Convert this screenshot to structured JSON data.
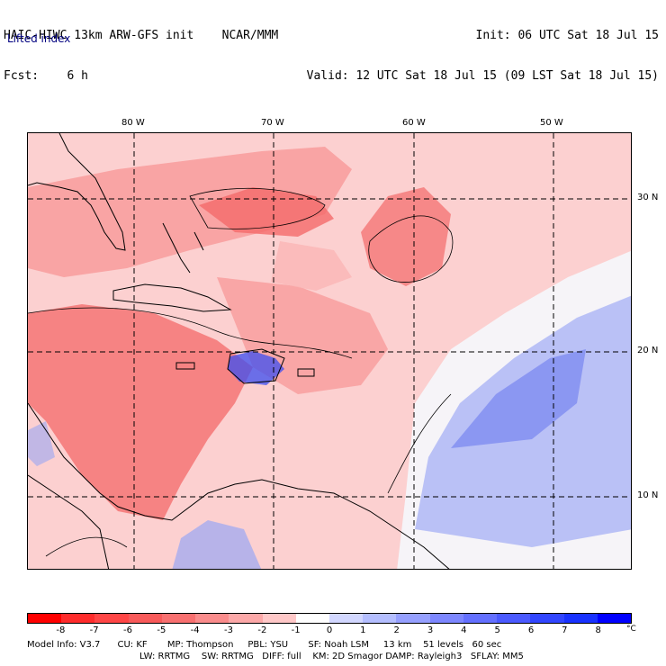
{
  "header": {
    "line1_left": "HAIC-HIWC 13km ARW-GFS init    NCAR/MMM",
    "line2_left": "Fcst:    6 h",
    "line1_right": "Init: 06 UTC Sat 18 Jul 15",
    "line2_right": "Valid: 12 UTC Sat 18 Jul 15 (09 LST Sat 18 Jul 15)",
    "field": "Lifted index"
  },
  "axes": {
    "lon_labels": [
      "80 W",
      "70 W",
      "60 W",
      "50 W"
    ],
    "lat_labels": [
      "30 N",
      "20 N",
      "10 N"
    ]
  },
  "colorbar": {
    "unit": "°C",
    "ticks": [
      "-8",
      "-7",
      "-6",
      "-5",
      "-4",
      "-3",
      "-2",
      "-1",
      "0",
      "1",
      "2",
      "3",
      "4",
      "5",
      "6",
      "7",
      "8"
    ],
    "colors": [
      "#ff0000",
      "#ff2c2c",
      "#ff4646",
      "#f85a5a",
      "#f87070",
      "#fa8c8c",
      "#fca8a8",
      "#ffc8c8",
      "#ffffff",
      "#d2d7ff",
      "#b4beff",
      "#96a0ff",
      "#7d87ff",
      "#6470ff",
      "#4b5aff",
      "#3246ff",
      "#1932ff",
      "#0000ff"
    ]
  },
  "model_info": {
    "line1": "Model Info: V3.7      CU: KF       MP: Thompson     PBL: YSU       SF: Noah LSM     13 km    51 levels   60 sec",
    "line2": "LW: RRTMG    SW: RRTMG   DIFF: full    KM: 2D Smagor DAMP: Rayleigh3   SFLAY: MM5"
  },
  "map_colors": {
    "base": "#fcd0d0",
    "strong": "#f46a6a",
    "moderate": "#f89898",
    "weak": "#fbb8b8",
    "stable": "#9aa6f4",
    "stable_core": "#7b88f0",
    "neutral": "#f6f4f8",
    "land_blue": "#3b4ef0"
  }
}
